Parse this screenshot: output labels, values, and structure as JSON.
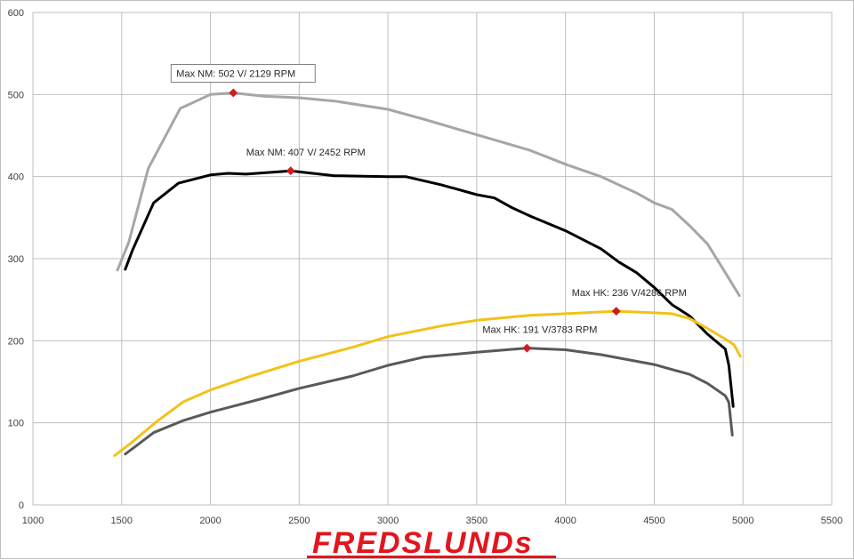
{
  "chart_data": {
    "type": "line",
    "xlim": [
      1000,
      5500
    ],
    "ylim": [
      0,
      600
    ],
    "xticks": [
      1000,
      1500,
      2000,
      2500,
      3000,
      3500,
      4000,
      4500,
      5000,
      5500
    ],
    "yticks": [
      0,
      100,
      200,
      300,
      400,
      500,
      600
    ],
    "grid": true,
    "series": [
      {
        "color": "#a6a6a6",
        "x": [
          1476,
          1540,
          1650,
          1830,
          2000,
          2129,
          2300,
          2500,
          2700,
          3000,
          3200,
          3500,
          3800,
          4000,
          4200,
          4400,
          4500,
          4600,
          4700,
          4800,
          4900,
          4980
        ],
        "y": [
          286,
          320,
          410,
          483,
          500,
          502,
          498,
          496,
          492,
          482,
          470,
          451,
          432,
          415,
          400,
          380,
          368,
          360,
          340,
          318,
          283,
          255
        ]
      },
      {
        "color": "#000000",
        "x": [
          1520,
          1560,
          1680,
          1820,
          2000,
          2100,
          2200,
          2452,
          2700,
          3000,
          3100,
          3300,
          3500,
          3600,
          3700,
          3800,
          4000,
          4200,
          4300,
          4400,
          4500,
          4600,
          4700,
          4800,
          4900,
          4920,
          4945
        ],
        "y": [
          287,
          310,
          368,
          392,
          402,
          404,
          403,
          407,
          401,
          400,
          400,
          390,
          378,
          374,
          362,
          352,
          334,
          312,
          296,
          283,
          265,
          244,
          230,
          208,
          190,
          170,
          120
        ]
      },
      {
        "color": "#f2c218",
        "x": [
          1460,
          1550,
          1700,
          1850,
          2000,
          2200,
          2500,
          2800,
          3000,
          3300,
          3500,
          3800,
          4000,
          4286,
          4500,
          4600,
          4700,
          4800,
          4900,
          4950,
          4985
        ],
        "y": [
          60,
          75,
          102,
          126,
          140,
          155,
          175,
          192,
          205,
          218,
          225,
          231,
          233,
          236,
          234,
          233,
          227,
          215,
          202,
          195,
          181
        ]
      },
      {
        "color": "#595959",
        "x": [
          1520,
          1570,
          1680,
          1850,
          2000,
          2300,
          2500,
          2800,
          3000,
          3200,
          3500,
          3783,
          4000,
          4200,
          4500,
          4700,
          4800,
          4900,
          4920,
          4940
        ],
        "y": [
          62,
          70,
          88,
          103,
          113,
          130,
          142,
          157,
          170,
          180,
          186,
          191,
          189,
          183,
          171,
          159,
          148,
          133,
          125,
          85
        ]
      }
    ],
    "annotations": [
      {
        "text": "Max NM: 502 V/ 2129 RPM",
        "x": 2129,
        "y": 502,
        "boxed": true
      },
      {
        "text": "Max NM: 407 V/ 2452 RPM",
        "x": 2452,
        "y": 407,
        "boxed": false
      },
      {
        "text": "Max HK: 236 V/4286 RPM",
        "x": 4286,
        "y": 236,
        "boxed": false
      },
      {
        "text": "Max HK: 191 V/3783 RPM",
        "x": 3783,
        "y": 191,
        "boxed": false
      }
    ],
    "marker_color": "#d01c1c"
  },
  "logo": {
    "text": "FREDSLUNDs",
    "color": "#e3151e"
  }
}
